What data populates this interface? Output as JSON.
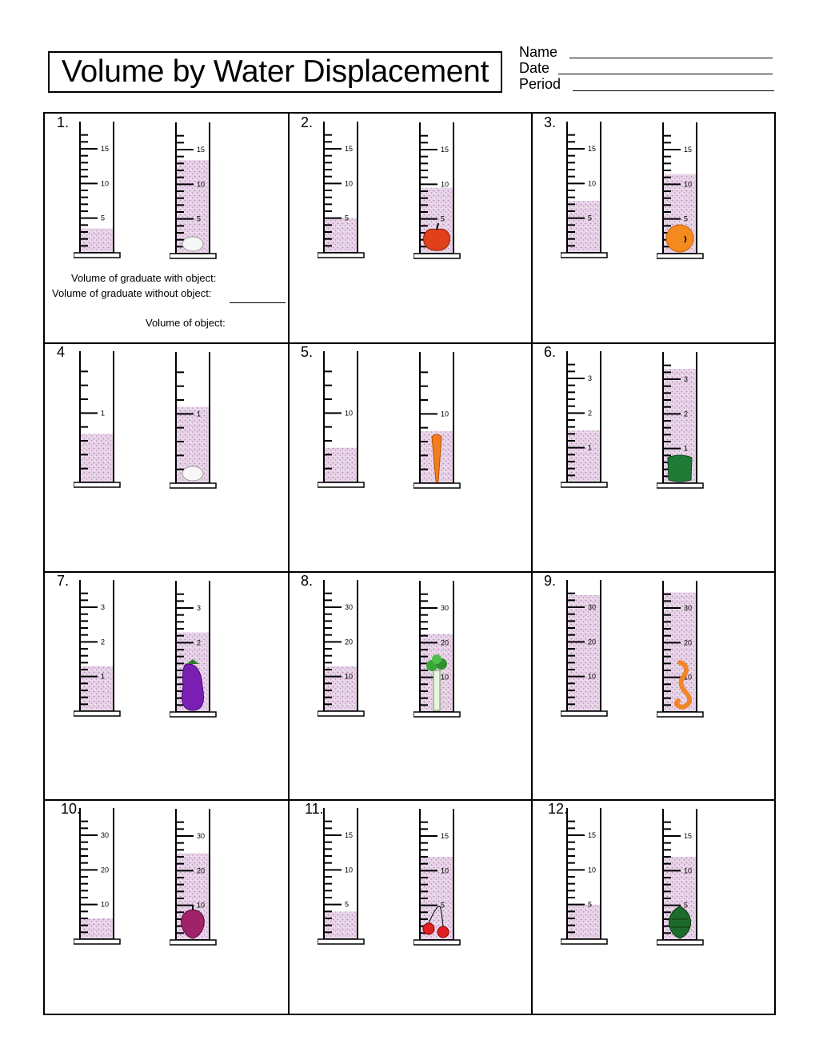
{
  "title": "Volume by Water Displacement",
  "header_fields": {
    "name_label": "Name",
    "date_label": "Date",
    "period_label": "Period"
  },
  "instructions": {
    "with_object": "Volume of graduate with object:",
    "without_object": "Volume of graduate without object:",
    "object_volume": "Volume of object:"
  },
  "colors": {
    "water": "#e8d4e8",
    "water_dots": "#b38ab3"
  },
  "problems": [
    {
      "number": "1.",
      "labels": [
        "5",
        "10",
        "15"
      ],
      "max": 18,
      "left_level": 3.5,
      "right_level": 13.5,
      "object": "egg",
      "object_icon": "egg-icon"
    },
    {
      "number": "2.",
      "labels": [
        "5",
        "10",
        "15"
      ],
      "max": 18,
      "left_level": 5.0,
      "right_level": 9.5,
      "object": "apple",
      "object_icon": "apple-icon"
    },
    {
      "number": "3.",
      "labels": [
        "5",
        "10",
        "15"
      ],
      "max": 18,
      "left_level": 7.5,
      "right_level": 11.5,
      "object": "orange",
      "object_icon": "orange-icon"
    },
    {
      "number": "4",
      "labels": [
        "1"
      ],
      "max": 1.8,
      "left_level": 0.7,
      "right_level": 1.1,
      "object": "egg",
      "object_icon": "egg-icon"
    },
    {
      "number": "5.",
      "labels": [
        "10"
      ],
      "max": 18,
      "left_level": 5.0,
      "right_level": 7.5,
      "object": "carrot",
      "object_icon": "carrot-icon"
    },
    {
      "number": "6.",
      "labels": [
        "1",
        "2",
        "3"
      ],
      "max": 3.6,
      "left_level": 1.5,
      "right_level": 3.3,
      "object": "pepper",
      "object_icon": "pepper-icon"
    },
    {
      "number": "7.",
      "labels": [
        "1",
        "2",
        "3"
      ],
      "max": 3.6,
      "left_level": 1.3,
      "right_level": 2.3,
      "object": "eggplant",
      "object_icon": "eggplant-icon"
    },
    {
      "number": "8.",
      "labels": [
        "10",
        "20",
        "30"
      ],
      "max": 36,
      "left_level": 13.0,
      "right_level": 22.5,
      "object": "celery",
      "object_icon": "celery-icon"
    },
    {
      "number": "9.",
      "labels": [
        "10",
        "20",
        "30"
      ],
      "max": 36,
      "left_level": 33.5,
      "right_level": 34.5,
      "object": "seahorse",
      "object_icon": "seahorse-icon"
    },
    {
      "number": "10.",
      "labels": [
        "10",
        "20",
        "30"
      ],
      "max": 36,
      "left_level": 6.0,
      "right_level": 25.0,
      "object": "beet",
      "object_icon": "beet-icon"
    },
    {
      "number": "11.",
      "labels": [
        "5",
        "10",
        "15"
      ],
      "max": 18,
      "left_level": 4.0,
      "right_level": 12.0,
      "object": "cherries",
      "object_icon": "cherries-icon"
    },
    {
      "number": "12.",
      "labels": [
        "5",
        "10",
        "15"
      ],
      "max": 18,
      "left_level": 5.0,
      "right_level": 12.0,
      "object": "artichoke",
      "object_icon": "artichoke-icon"
    }
  ]
}
